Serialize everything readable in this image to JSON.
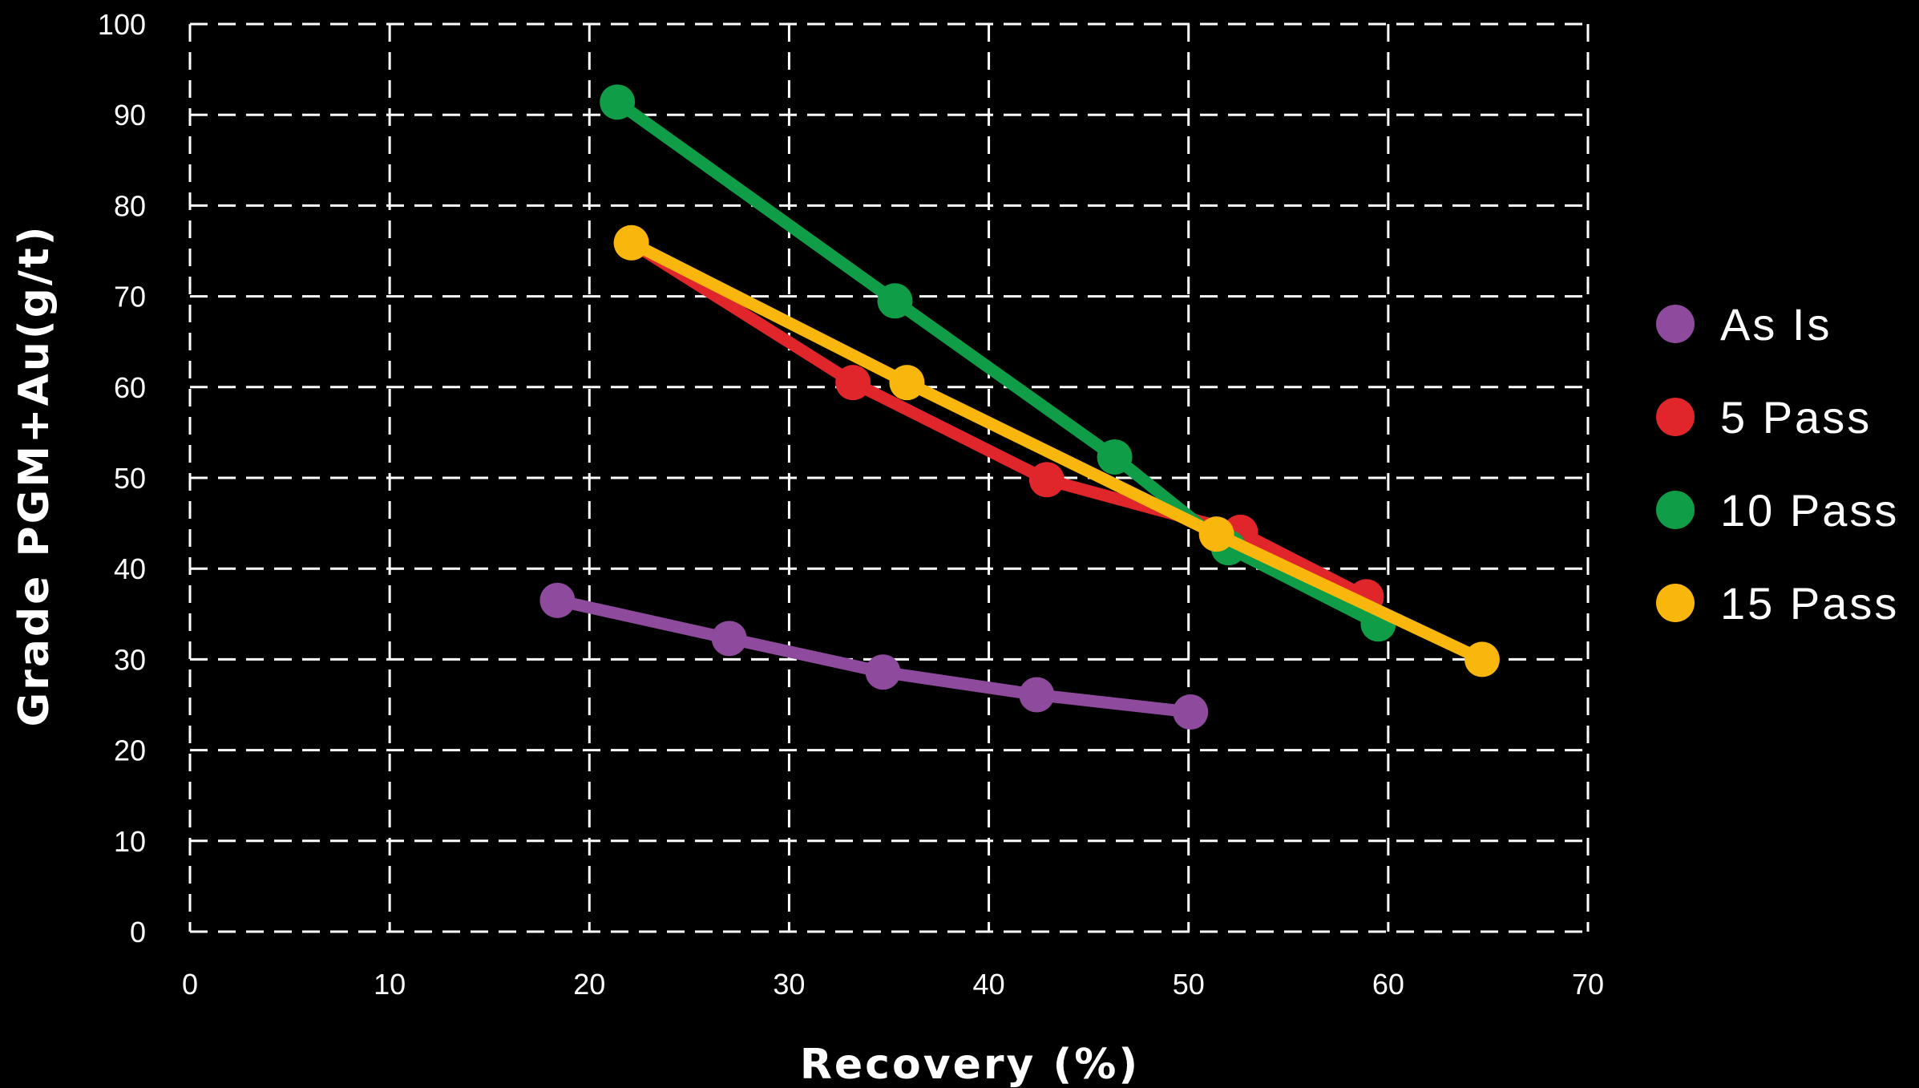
{
  "chart_data": {
    "type": "line",
    "title": "",
    "xlabel": "Recovery (%)",
    "ylabel": "Grade PGM+Au(g/t)",
    "xlim": [
      0,
      70
    ],
    "ylim": [
      0,
      100
    ],
    "x_ticks": [
      0,
      10,
      20,
      30,
      40,
      50,
      60,
      70
    ],
    "y_ticks": [
      0,
      10,
      20,
      30,
      40,
      50,
      60,
      70,
      80,
      90,
      100
    ],
    "grid": true,
    "legend_position": "right",
    "series": [
      {
        "name": "As Is",
        "color": "#8e4a9c",
        "points": [
          [
            18.4,
            36.5
          ],
          [
            27.0,
            32.3
          ],
          [
            34.7,
            28.6
          ],
          [
            42.4,
            26.1
          ],
          [
            50.1,
            24.2
          ]
        ]
      },
      {
        "name": "5 Pass",
        "color": "#e0262b",
        "points": [
          [
            22.1,
            75.9
          ],
          [
            33.2,
            60.5
          ],
          [
            42.9,
            49.8
          ],
          [
            52.6,
            44.0
          ],
          [
            58.9,
            36.9
          ]
        ]
      },
      {
        "name": "10 Pass",
        "color": "#0f9d48",
        "points": [
          [
            21.4,
            91.4
          ],
          [
            35.3,
            69.5
          ],
          [
            46.3,
            52.3
          ],
          [
            52.0,
            42.3
          ],
          [
            59.5,
            33.9
          ]
        ]
      },
      {
        "name": "15 Pass",
        "color": "#f9b60d",
        "points": [
          [
            22.1,
            75.9
          ],
          [
            35.9,
            60.5
          ],
          [
            51.4,
            43.8
          ],
          [
            64.7,
            30.0
          ]
        ]
      }
    ]
  }
}
